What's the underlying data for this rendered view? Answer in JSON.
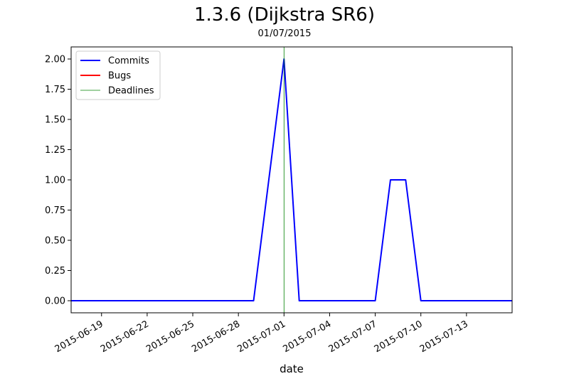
{
  "chart_data": {
    "type": "line",
    "title": "1.3.6 (Dijkstra SR6)",
    "subtitle": "01/07/2015",
    "xlabel": "date",
    "ylabel": "",
    "x_range": [
      "2015-06-17",
      "2015-07-16"
    ],
    "ylim": [
      -0.1,
      2.1
    ],
    "x_ticks": [
      "2015-06-19",
      "2015-06-22",
      "2015-06-25",
      "2015-06-28",
      "2015-07-01",
      "2015-07-04",
      "2015-07-07",
      "2015-07-10",
      "2015-07-13"
    ],
    "y_ticks": [
      "0.00",
      "0.25",
      "0.50",
      "0.75",
      "1.00",
      "1.25",
      "1.50",
      "1.75",
      "2.00"
    ],
    "grid": false,
    "legend_position": "top-left",
    "series": [
      {
        "name": "Commits",
        "color": "#0000ff",
        "points": [
          [
            "2015-06-17",
            0
          ],
          [
            "2015-06-29",
            0
          ],
          [
            "2015-07-01",
            2
          ],
          [
            "2015-07-02",
            0
          ],
          [
            "2015-07-07",
            0
          ],
          [
            "2015-07-08",
            1
          ],
          [
            "2015-07-09",
            1
          ],
          [
            "2015-07-10",
            0
          ],
          [
            "2015-07-16",
            0
          ]
        ]
      },
      {
        "name": "Bugs",
        "color": "#ff0000",
        "points": []
      }
    ],
    "deadlines": {
      "name": "Deadlines",
      "color": "#008000",
      "dates": [
        "2015-07-01"
      ]
    }
  }
}
